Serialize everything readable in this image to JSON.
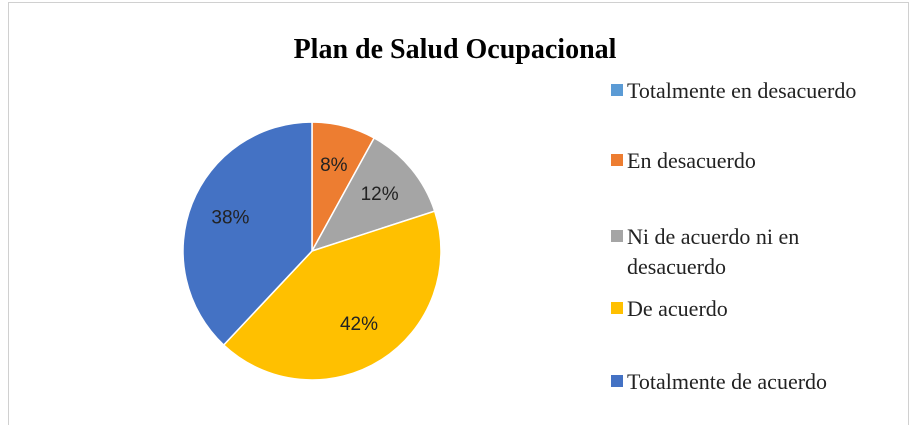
{
  "chart_data": {
    "type": "pie",
    "title": "Plan de Salud Ocupacional",
    "categories": [
      "Totalmente en desacuerdo",
      "En desacuerdo",
      "Ni de acuerdo ni en desacuerdo",
      "De acuerdo",
      "Totalmente de acuerdo"
    ],
    "values": [
      0,
      8,
      12,
      42,
      38
    ],
    "value_labels": [
      null,
      "8%",
      "12%",
      "42%",
      "38%"
    ],
    "colors": [
      "#5b9bd5",
      "#ed7d31",
      "#a5a5a5",
      "#ffc000",
      "#4472c4"
    ],
    "legend": "right"
  }
}
